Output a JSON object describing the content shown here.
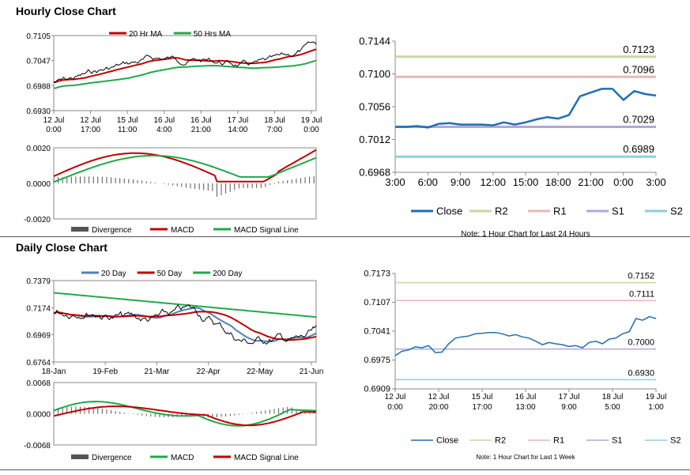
{
  "hourly": {
    "title": "Hourly Close Chart",
    "price_chart": {
      "type": "line",
      "legend": [
        "20 Hr MA",
        "50 Hrs MA"
      ],
      "yticks": [
        "0.7105",
        "0.7047",
        "0.6988",
        "0.6930"
      ],
      "ylim": [
        0.693,
        0.7105
      ],
      "xticks": [
        [
          "12 Jul",
          "0:00"
        ],
        [
          "12 Jul",
          "17:00"
        ],
        [
          "15 Jul",
          "11:00"
        ],
        [
          "16 Jul",
          "4:00"
        ],
        [
          "16 Jul",
          "21:00"
        ],
        [
          "17 Jul",
          "14:00"
        ],
        [
          "18 Jul",
          "7:00"
        ],
        [
          "19 Jul",
          "0:00"
        ]
      ],
      "colors": {
        "ma20": "#c00000",
        "ma50": "#22a84a",
        "price": "#000000"
      }
    },
    "macd_chart": {
      "type": "line",
      "yticks": [
        "0.0020",
        "0.0000",
        "-0.0020"
      ],
      "ylim": [
        -0.002,
        0.002
      ],
      "legend": [
        "Divergence",
        "MACD",
        "MACD Signal Line"
      ],
      "colors": {
        "macd": "#c00000",
        "signal": "#22a84a",
        "divergence": "#555555"
      }
    },
    "pivot_chart": {
      "type": "line",
      "yticks": [
        "0.7144",
        "0.7100",
        "0.7056",
        "0.7012",
        "0.6968"
      ],
      "ylim": [
        0.6968,
        0.7144
      ],
      "xticks": [
        "3:00",
        "6:00",
        "9:00",
        "12:00",
        "15:00",
        "18:00",
        "21:00",
        "0:00",
        "3:00"
      ],
      "levels": [
        {
          "name": "R2",
          "value": 0.7123,
          "label": "0.7123",
          "color": "#c6d9a0"
        },
        {
          "name": "R1",
          "value": 0.7096,
          "label": "0.7096",
          "color": "#e6b8b7"
        },
        {
          "name": "S1",
          "value": 0.7029,
          "label": "0.7029",
          "color": "#b4a7d6"
        },
        {
          "name": "S2",
          "value": 0.6989,
          "label": "0.6989",
          "color": "#92cddc"
        }
      ],
      "close_color": "#1f6fb4",
      "close_values": [
        0.7029,
        0.7029,
        0.703,
        0.7028,
        0.7033,
        0.7034,
        0.7032,
        0.7032,
        0.7032,
        0.7031,
        0.7035,
        0.7032,
        0.7035,
        0.7039,
        0.7042,
        0.704,
        0.7045,
        0.707,
        0.7075,
        0.708,
        0.708,
        0.7065,
        0.7077,
        0.7073,
        0.7071
      ],
      "legend": [
        "Close",
        "R2",
        "R1",
        "S1",
        "S2"
      ],
      "note": "Note: 1 Hour Chart for Last 24 Hours"
    }
  },
  "daily": {
    "title": "Daily Close Chart",
    "price_chart": {
      "type": "line",
      "legend": [
        "20 Day",
        "50 Day",
        "200 Day"
      ],
      "yticks": [
        "0.7379",
        "0.7174",
        "0.6969",
        "0.6764"
      ],
      "ylim": [
        0.6764,
        0.7379
      ],
      "xticks": [
        "18-Jan",
        "19-Feb",
        "21-Mar",
        "22-Apr",
        "22-May",
        "21-Jun"
      ],
      "colors": {
        "d20": "#4f81bd",
        "d50": "#c00000",
        "d200": "#22a84a",
        "price": "#000000"
      }
    },
    "macd_chart": {
      "type": "line",
      "yticks": [
        "0.0068",
        "0.0000",
        "-0.0068"
      ],
      "ylim": [
        -0.0068,
        0.0068
      ],
      "legend": [
        "Divergence",
        "MACD",
        "MACD Signal Line"
      ],
      "colors": {
        "macd": "#22a84a",
        "signal": "#c00000",
        "divergence": "#555555"
      }
    },
    "pivot_chart": {
      "type": "line",
      "yticks": [
        "0.7173",
        "0.7107",
        "0.7041",
        "0.6975",
        "0.6909"
      ],
      "ylim": [
        0.6909,
        0.7173
      ],
      "xticks": [
        [
          "12 Jul",
          "0:00"
        ],
        [
          "12 Jul",
          "20:00"
        ],
        [
          "15 Jul",
          "17:00"
        ],
        [
          "16 Jul",
          "13:00"
        ],
        [
          "17 Jul",
          "9:00"
        ],
        [
          "18 Jul",
          "5:00"
        ],
        [
          "19 Jul",
          "1:00"
        ]
      ],
      "levels": [
        {
          "name": "R2",
          "value": 0.7152,
          "label": "0.7152",
          "color": "#c6d9a0"
        },
        {
          "name": "R1",
          "value": 0.7111,
          "label": "0.7111",
          "color": "#e6b8b7"
        },
        {
          "name": "S1",
          "value": 0.7,
          "label": "0.7000",
          "color": "#b4a7d6"
        },
        {
          "name": "S2",
          "value": 0.693,
          "label": "0.6930",
          "color": "#92cddc"
        }
      ],
      "close_color": "#1f6fb4",
      "close_values": [
        0.6985,
        0.6995,
        0.6998,
        0.7005,
        0.7003,
        0.7008,
        0.6992,
        0.6993,
        0.7012,
        0.7025,
        0.7028,
        0.703,
        0.7035,
        0.7036,
        0.7038,
        0.7038,
        0.7035,
        0.703,
        0.7033,
        0.7028,
        0.7025,
        0.7018,
        0.701,
        0.7015,
        0.7012,
        0.701,
        0.7006,
        0.7008,
        0.7003,
        0.7015,
        0.7018,
        0.7012,
        0.7023,
        0.7025,
        0.7035,
        0.704,
        0.707,
        0.7066,
        0.7074,
        0.707
      ],
      "legend": [
        "Close",
        "R2",
        "R1",
        "S1",
        "S2"
      ],
      "note": "Note: 1 Hour Chart for Last 1 Week"
    }
  }
}
